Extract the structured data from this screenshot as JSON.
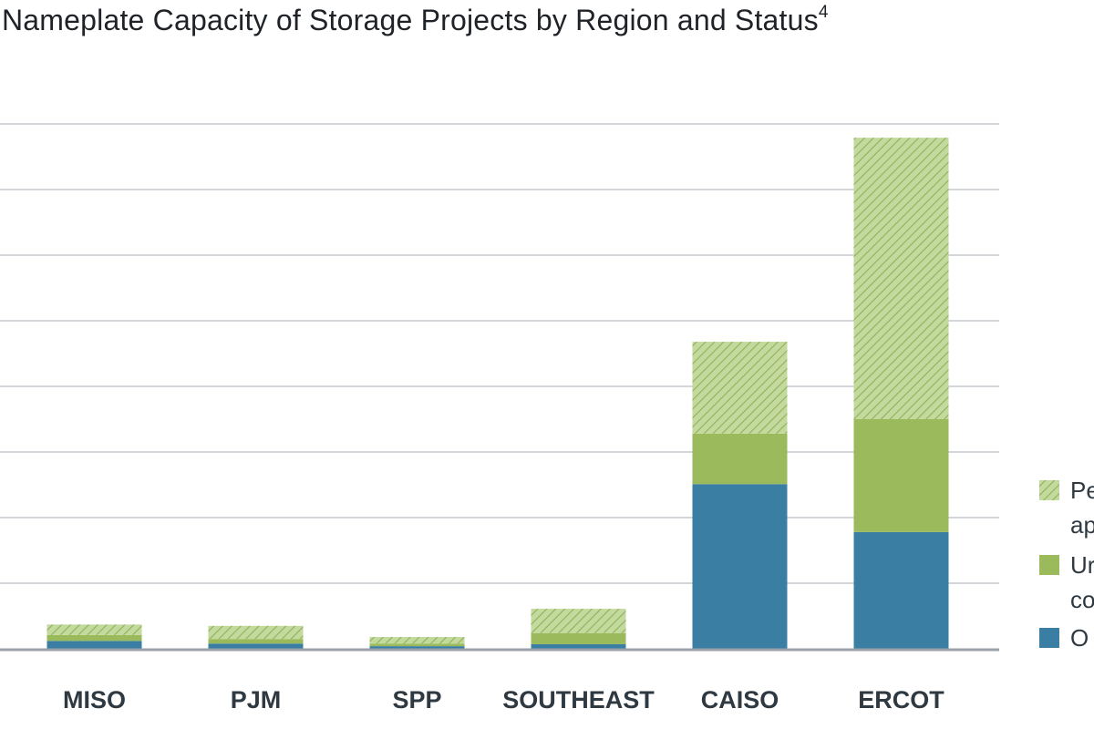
{
  "chart_data": {
    "type": "bar",
    "stacked": true,
    "title": "Nameplate Capacity of Storage Projects by Region and Status",
    "title_superscript": "4",
    "xlabel": "",
    "ylabel": "",
    "ylim": [
      0,
      8000
    ],
    "y_gridline_step": 1000,
    "grid": true,
    "legend_position": "right",
    "categories": [
      "MISO",
      "PJM",
      "SPP",
      "SOUTHEAST",
      "CAISO",
      "ERCOT"
    ],
    "series": [
      {
        "name": "Operating",
        "legend_label_visible": "O",
        "pattern": "solid",
        "color": "#3a7fa3",
        "values": [
          120,
          80,
          40,
          70,
          2510,
          1780
        ]
      },
      {
        "name": "Under construction",
        "legend_label_visible": [
          "Ur",
          "co"
        ],
        "pattern": "solid",
        "color": "#9aba5b",
        "values": [
          90,
          70,
          40,
          170,
          770,
          1720
        ]
      },
      {
        "name": "Permitted / approved",
        "legend_label_visible": [
          "Pe",
          "ap"
        ],
        "pattern": "hatched",
        "color": "#b6d08a",
        "values": [
          160,
          200,
          100,
          370,
          1400,
          4290
        ]
      }
    ]
  }
}
